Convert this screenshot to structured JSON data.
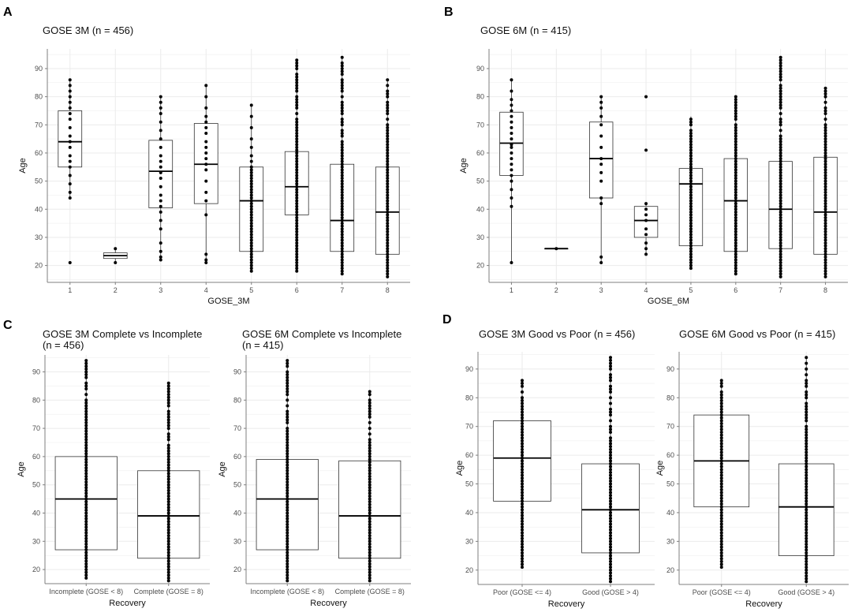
{
  "figure": {
    "panel_letters": [
      "A",
      "B",
      "C",
      "D"
    ]
  },
  "colors": {
    "grid": "#ebebeb",
    "axis": "#7f7f7f",
    "point": "#000000",
    "box_fill": "#ffffff",
    "box_stroke": "#333333"
  },
  "chart_data": [
    {
      "id": "A",
      "type": "boxplot",
      "title": "GOSE 3M (n = 456)",
      "xlabel": "GOSE_3M",
      "ylabel": "Age",
      "ylim": [
        14,
        97
      ],
      "yticks": [
        20,
        30,
        40,
        50,
        60,
        70,
        80,
        90
      ],
      "categories": [
        "1",
        "2",
        "3",
        "4",
        "5",
        "6",
        "7",
        "8"
      ],
      "boxes": [
        {
          "category": "1",
          "q1": 55,
          "median": 64,
          "q3": 75,
          "min": 44,
          "max": 86,
          "points": [
            21,
            44,
            46,
            49,
            52,
            55,
            57,
            59,
            62,
            64,
            66,
            69,
            72,
            74,
            76,
            78,
            80,
            82,
            84,
            86
          ]
        },
        {
          "category": "2",
          "q1": 22.5,
          "median": 23.5,
          "q3": 24.5,
          "min": 21,
          "max": 26,
          "points": [
            21,
            26
          ]
        },
        {
          "category": "3",
          "q1": 40.5,
          "median": 53.5,
          "q3": 64.5,
          "min": 22,
          "max": 80,
          "points": [
            22,
            23,
            25,
            28,
            33,
            36,
            39,
            41,
            43,
            45,
            48,
            51,
            53,
            55,
            57,
            59,
            62,
            65,
            68,
            71,
            74,
            76,
            78,
            80
          ]
        },
        {
          "category": "4",
          "q1": 42,
          "median": 56,
          "q3": 70.5,
          "min": 21,
          "max": 84,
          "points": [
            21,
            22,
            24,
            38,
            43,
            46,
            50,
            54,
            56,
            58,
            60,
            62,
            64,
            67,
            69,
            71,
            73,
            76,
            80,
            84
          ]
        },
        {
          "category": "5",
          "q1": 25,
          "median": 43,
          "q3": 55,
          "min": 18,
          "max": 77,
          "points": [
            18,
            19,
            20,
            21,
            22,
            23,
            24,
            25,
            26,
            27,
            28,
            29,
            30,
            31,
            32,
            33,
            34,
            35,
            36,
            37,
            38,
            39,
            40,
            41,
            42,
            43,
            44,
            45,
            46,
            47,
            48,
            49,
            50,
            51,
            52,
            53,
            54,
            55,
            57,
            59,
            62,
            65,
            69,
            73,
            77
          ]
        },
        {
          "category": "6",
          "q1": 38,
          "median": 48,
          "q3": 60.5,
          "min": 18,
          "max": 93,
          "points": []
        },
        {
          "category": "7",
          "q1": 25,
          "median": 36,
          "q3": 56,
          "min": 17,
          "max": 94,
          "points": []
        },
        {
          "category": "8",
          "q1": 24,
          "median": 39,
          "q3": 55,
          "min": 16,
          "max": 86,
          "points": []
        }
      ]
    },
    {
      "id": "B",
      "type": "boxplot",
      "title": "GOSE 6M (n = 415)",
      "xlabel": "GOSE_6M",
      "ylabel": "Age",
      "ylim": [
        14,
        97
      ],
      "yticks": [
        20,
        30,
        40,
        50,
        60,
        70,
        80,
        90
      ],
      "categories": [
        "1",
        "2",
        "3",
        "4",
        "5",
        "6",
        "7",
        "8"
      ],
      "boxes": [
        {
          "category": "1",
          "q1": 52,
          "median": 63.5,
          "q3": 74.5,
          "min": 21,
          "max": 86,
          "points": [
            21,
            41,
            44,
            47,
            50,
            52,
            54,
            56,
            58,
            60,
            62,
            63,
            65,
            67,
            69,
            71,
            73,
            75,
            77,
            79,
            82,
            86
          ]
        },
        {
          "category": "2",
          "q1": 26,
          "median": 26,
          "q3": 26,
          "min": 26,
          "max": 26,
          "points": [
            26
          ]
        },
        {
          "category": "3",
          "q1": 44,
          "median": 58,
          "q3": 71,
          "min": 21,
          "max": 80,
          "points": [
            21,
            23,
            42,
            44,
            50,
            53,
            56,
            58,
            62,
            66,
            70,
            73,
            76,
            78,
            80
          ]
        },
        {
          "category": "4",
          "q1": 30,
          "median": 36,
          "q3": 41,
          "min": 24,
          "max": 42,
          "points": [
            24,
            26,
            28,
            31,
            33,
            36,
            38,
            40,
            42,
            61,
            80
          ]
        },
        {
          "category": "5",
          "q1": 27,
          "median": 49,
          "q3": 54.5,
          "min": 19,
          "max": 73,
          "points": []
        },
        {
          "category": "6",
          "q1": 25,
          "median": 43,
          "q3": 58,
          "min": 17,
          "max": 80,
          "points": []
        },
        {
          "category": "7",
          "q1": 26,
          "median": 40,
          "q3": 57,
          "min": 16,
          "max": 94,
          "points": []
        },
        {
          "category": "8",
          "q1": 24,
          "median": 39,
          "q3": 58.5,
          "min": 16,
          "max": 83,
          "points": []
        }
      ]
    },
    {
      "id": "C1",
      "type": "boxplot",
      "title": "GOSE 3M Complete vs Incomplete",
      "subtitle": "(n = 456)",
      "xlabel": "Recovery",
      "ylabel": "Age",
      "ylim": [
        15,
        96
      ],
      "yticks": [
        20,
        30,
        40,
        50,
        60,
        70,
        80,
        90
      ],
      "categories": [
        "Incomplete (GOSE < 8)",
        "Complete (GOSE = 8)"
      ],
      "boxes": [
        {
          "category": "Incomplete (GOSE < 8)",
          "q1": 27,
          "median": 45,
          "q3": 60,
          "min": 17,
          "max": 94,
          "points": []
        },
        {
          "category": "Complete (GOSE = 8)",
          "q1": 24,
          "median": 39,
          "q3": 55,
          "min": 16,
          "max": 86,
          "points": []
        }
      ]
    },
    {
      "id": "C2",
      "type": "boxplot",
      "title": "GOSE 6M Complete vs Incomplete",
      "subtitle": "(n = 415)",
      "xlabel": "Recovery",
      "ylabel": "Age",
      "ylim": [
        15,
        96
      ],
      "yticks": [
        20,
        30,
        40,
        50,
        60,
        70,
        80,
        90
      ],
      "categories": [
        "Incomplete (GOSE < 8)",
        "Complete (GOSE = 8)"
      ],
      "boxes": [
        {
          "category": "Incomplete (GOSE < 8)",
          "q1": 27,
          "median": 45,
          "q3": 59,
          "min": 16,
          "max": 94,
          "points": []
        },
        {
          "category": "Complete (GOSE = 8)",
          "q1": 24,
          "median": 39,
          "q3": 58.5,
          "min": 16,
          "max": 83,
          "points": []
        }
      ]
    },
    {
      "id": "D1",
      "type": "boxplot",
      "title": "GOSE 3M Good vs Poor (n = 456)",
      "xlabel": "Recovery",
      "ylabel": "Age",
      "ylim": [
        15,
        96
      ],
      "yticks": [
        20,
        30,
        40,
        50,
        60,
        70,
        80,
        90
      ],
      "categories": [
        "Poor (GOSE <= 4)",
        "Good (GOSE > 4)"
      ],
      "boxes": [
        {
          "category": "Poor (GOSE <= 4)",
          "q1": 44,
          "median": 59,
          "q3": 72,
          "min": 21,
          "max": 86,
          "points": []
        },
        {
          "category": "Good (GOSE > 4)",
          "q1": 26,
          "median": 41,
          "q3": 57,
          "min": 16,
          "max": 94,
          "points": []
        }
      ]
    },
    {
      "id": "D2",
      "type": "boxplot",
      "title": "GOSE 6M Good vs Poor (n = 415)",
      "xlabel": "Recovery",
      "ylabel": "Age",
      "ylim": [
        15,
        96
      ],
      "yticks": [
        20,
        30,
        40,
        50,
        60,
        70,
        80,
        90
      ],
      "categories": [
        "Poor (GOSE <= 4)",
        "Good (GOSE > 4)"
      ],
      "boxes": [
        {
          "category": "Poor (GOSE <= 4)",
          "q1": 42,
          "median": 58,
          "q3": 74,
          "min": 21,
          "max": 86,
          "points": []
        },
        {
          "category": "Good (GOSE > 4)",
          "q1": 25,
          "median": 42,
          "q3": 57,
          "min": 16,
          "max": 94,
          "points": []
        }
      ]
    }
  ]
}
